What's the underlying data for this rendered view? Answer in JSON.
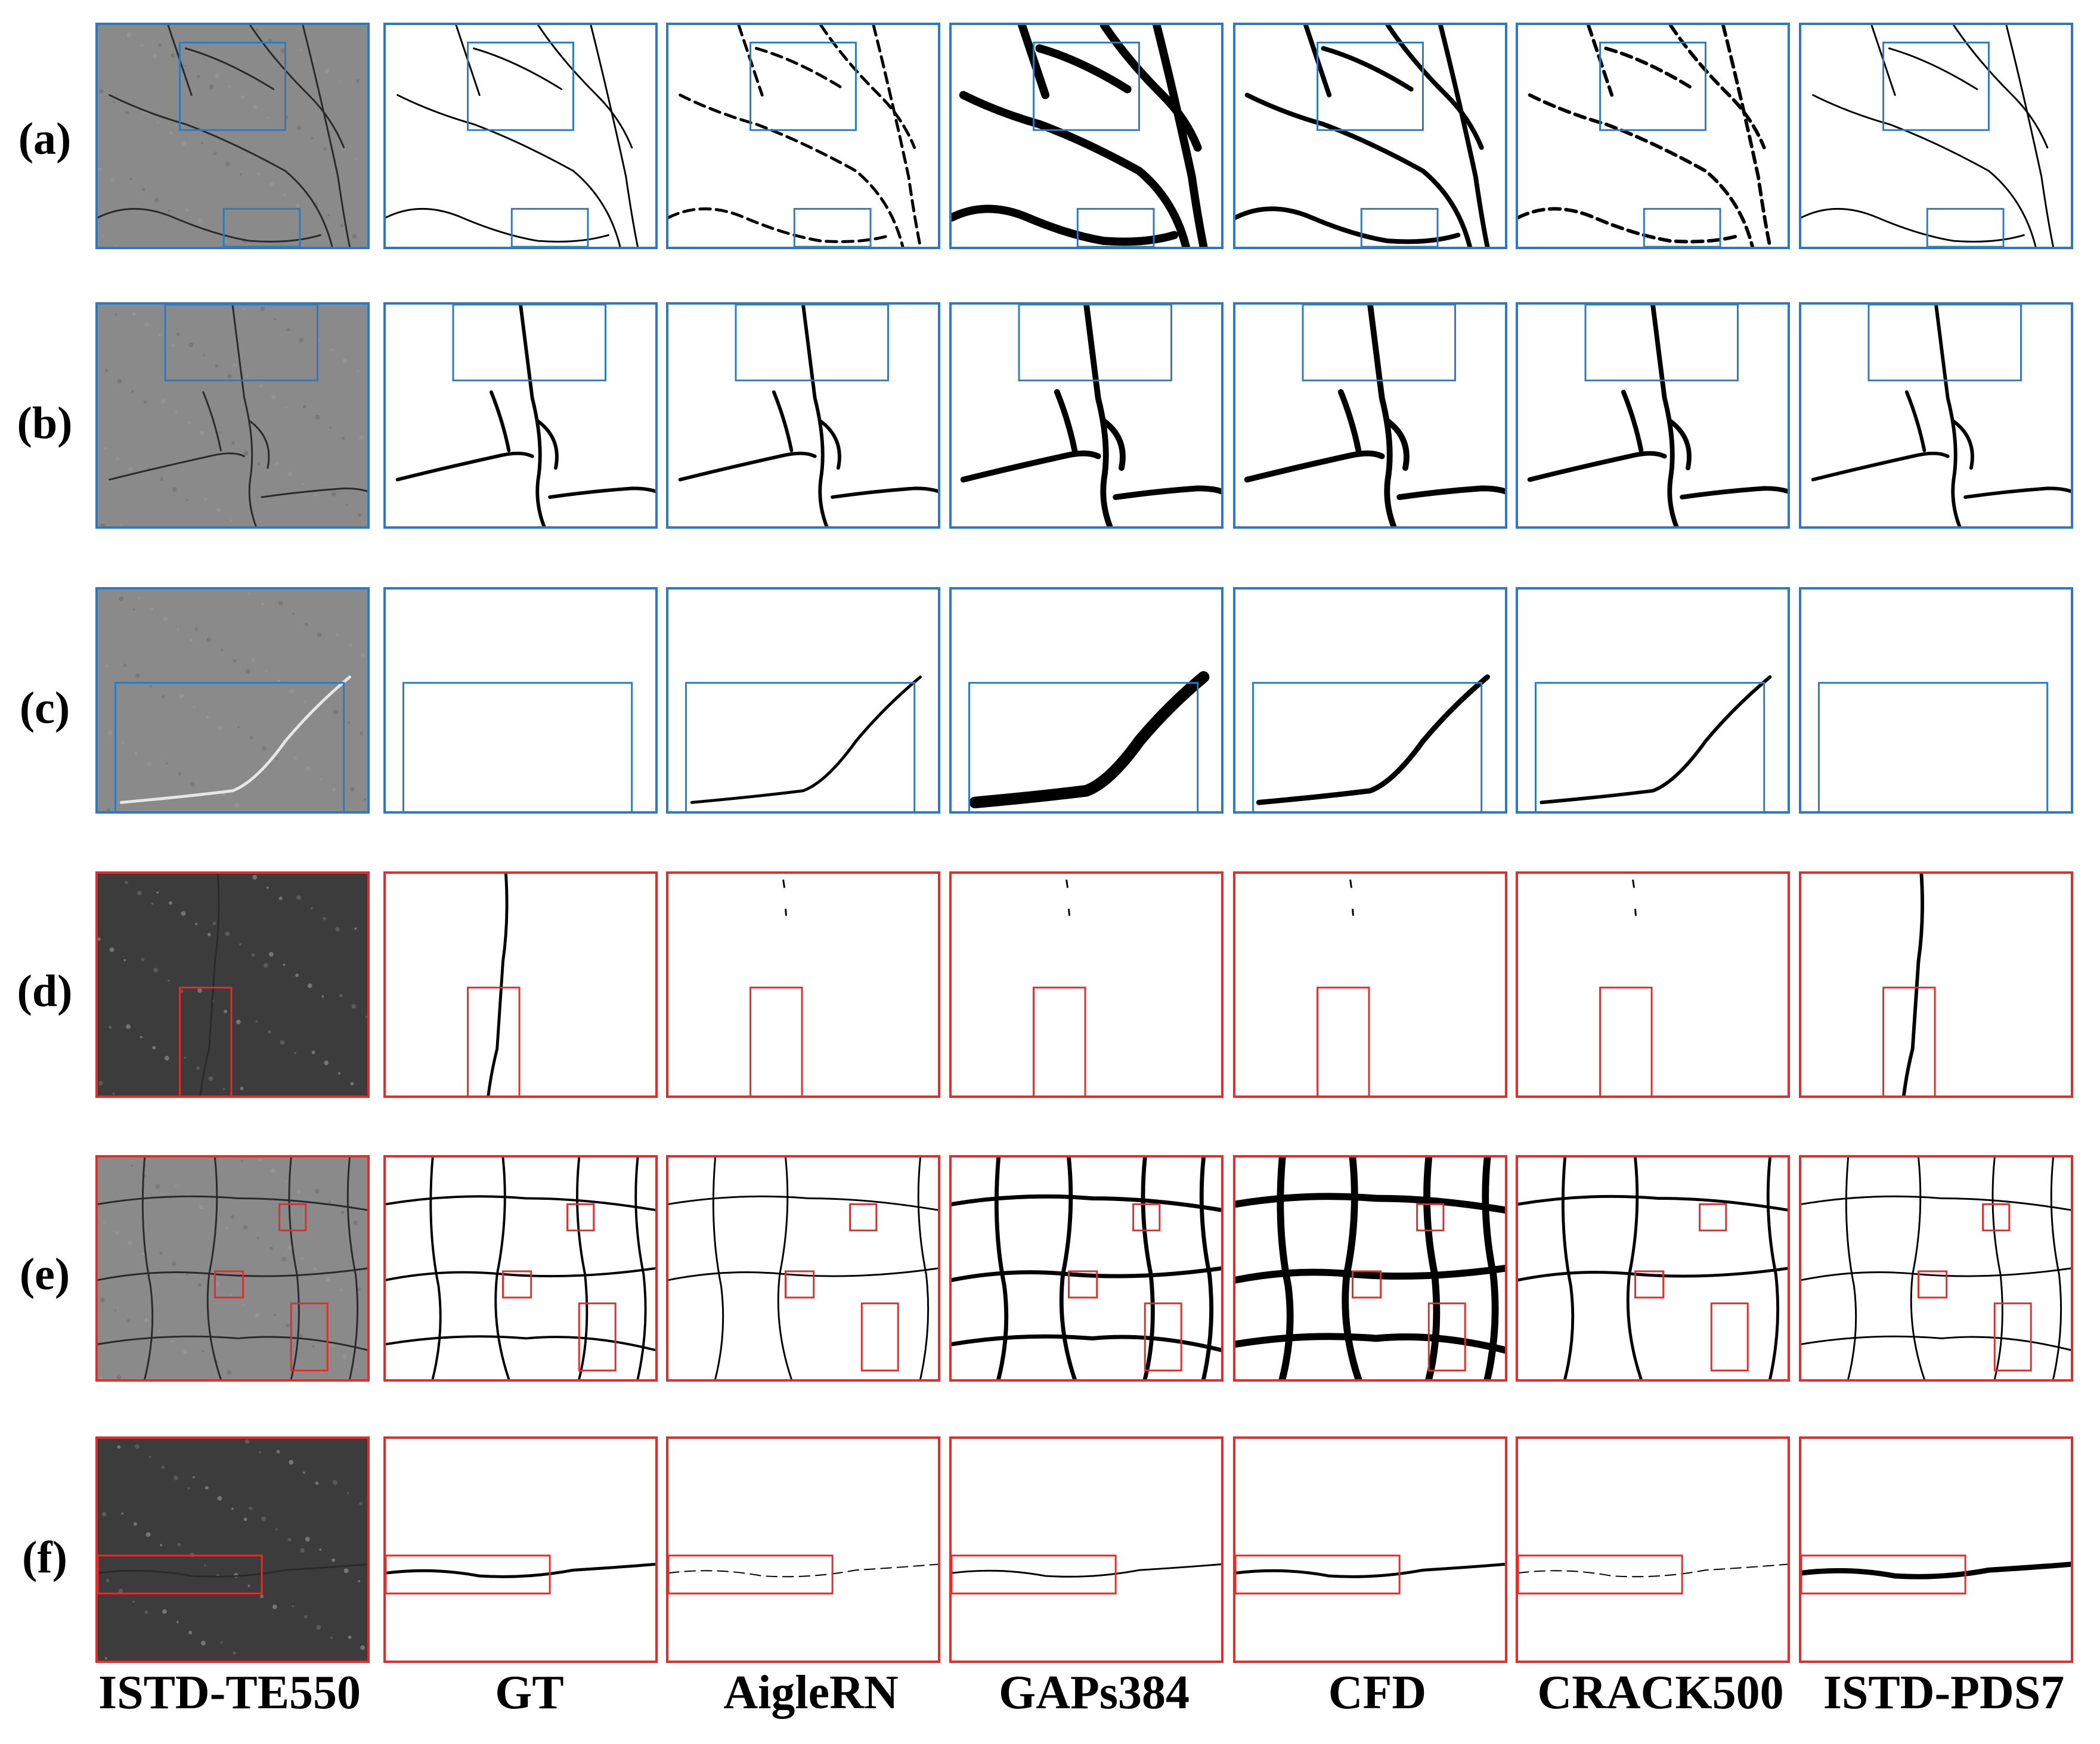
{
  "figure": {
    "row_labels": [
      "(a)",
      "(b)",
      "(c)",
      "(d)",
      "(e)",
      "(f)"
    ],
    "column_labels": [
      "ISTD-TE550",
      "GT",
      "AigleRN",
      "GAPs384",
      "CFD",
      "CRACK500",
      "ISTD-PDS7"
    ],
    "colors": {
      "blue_frame": "#2b7bc4",
      "red_frame": "#e52b2b",
      "crack": "#000000"
    }
  }
}
